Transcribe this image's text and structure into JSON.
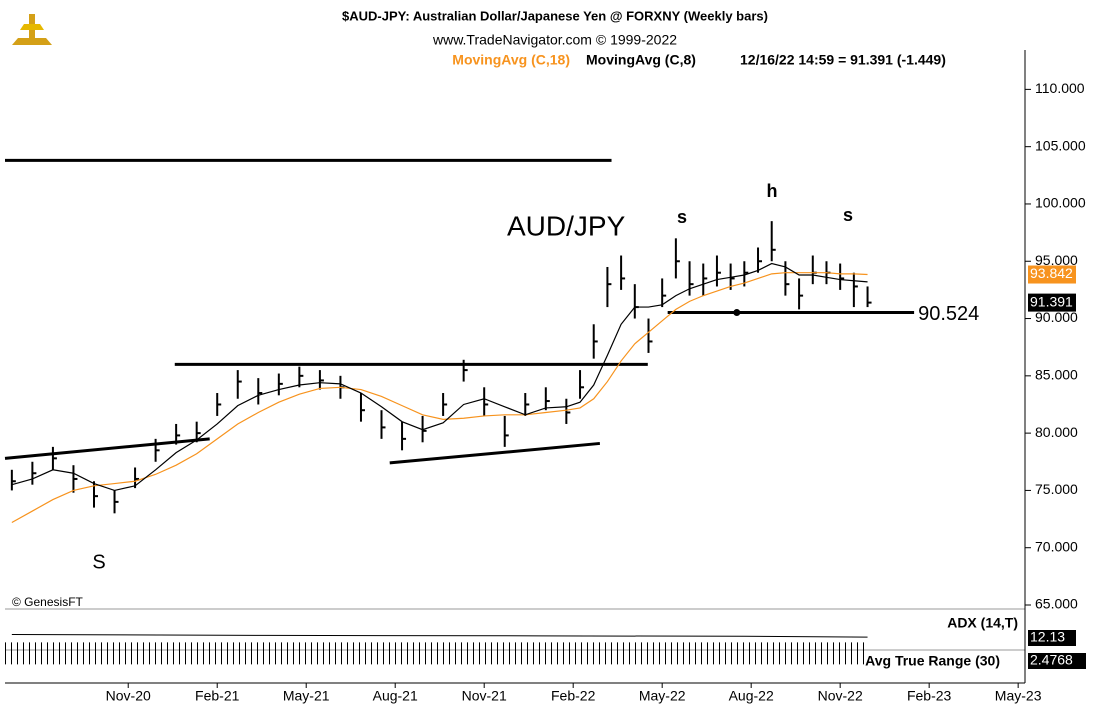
{
  "chart_data": {
    "type": "ohlc",
    "title": "$AUD-JPY:  Australian Dollar/Japanese Yen @ FORXNY  (Weekly bars)",
    "subtitle": "www.TradeNavigator.com © 1999-2022",
    "legend_ma18": "MovingAvg (C,18)",
    "legend_ma8": "MovingAvg (C,8)",
    "legend_quote": "12/16/22 14:59 = 91.391 (-1.449)",
    "annotation_pair": "AUD/JPY",
    "annotation_left_shoulder": "s",
    "annotation_head": "h",
    "annotation_right_shoulder": "s",
    "annotation_big_s": "S",
    "credit": "© GenesisFT",
    "x": [
      -17,
      -14,
      -11,
      -8,
      -5,
      -2,
      1,
      4,
      7,
      10,
      13,
      16,
      19,
      22,
      25,
      28,
      31,
      34,
      37,
      40,
      43,
      46,
      49,
      52,
      55,
      58,
      61,
      64,
      66,
      68,
      70,
      72,
      74,
      76,
      78,
      80,
      82,
      84,
      86,
      88,
      90,
      92,
      94,
      96,
      98,
      100,
      102,
      104,
      106,
      108
    ],
    "high": [
      76.8,
      77.5,
      78.8,
      77.2,
      75.8,
      75.0,
      77.0,
      79.5,
      80.8,
      81.0,
      83.5,
      85.5,
      84.8,
      85.2,
      85.8,
      85.5,
      85.0,
      83.5,
      82.0,
      81.0,
      81.5,
      83.5,
      86.4,
      84.0,
      81.5,
      83.5,
      84.0,
      83.0,
      85.5,
      89.5,
      94.5,
      95.5,
      93.0,
      90.0,
      93.5,
      97.0,
      95.0,
      94.8,
      95.5,
      94.8,
      95.0,
      96.2,
      98.5,
      95.0,
      93.5,
      95.5,
      95.0,
      94.8,
      94.0,
      92.8
    ],
    "low": [
      75.0,
      75.5,
      76.8,
      74.8,
      73.5,
      73.0,
      75.2,
      77.5,
      79.0,
      79.2,
      81.5,
      83.0,
      82.5,
      83.3,
      84.0,
      83.8,
      83.0,
      81.0,
      79.5,
      78.5,
      79.2,
      81.5,
      84.5,
      81.5,
      78.8,
      81.5,
      82.0,
      80.8,
      83.0,
      86.5,
      91.0,
      92.5,
      90.0,
      87.0,
      91.0,
      93.5,
      92.0,
      92.0,
      92.8,
      92.5,
      92.8,
      94.0,
      95.0,
      92.0,
      90.8,
      93.0,
      93.0,
      92.5,
      91.0,
      91.0
    ],
    "close": [
      75.8,
      76.5,
      77.8,
      76.0,
      74.5,
      74.0,
      76.0,
      78.5,
      79.8,
      80.0,
      82.5,
      84.5,
      83.5,
      84.3,
      85.0,
      84.6,
      84.0,
      82.0,
      80.5,
      79.5,
      80.2,
      82.5,
      85.5,
      82.5,
      79.8,
      82.5,
      82.8,
      81.8,
      84.0,
      88.0,
      93.0,
      93.5,
      91.0,
      88.0,
      92.0,
      95.0,
      93.0,
      93.5,
      94.0,
      93.5,
      94.0,
      95.0,
      96.0,
      93.0,
      92.0,
      94.0,
      94.0,
      93.5,
      92.8,
      91.391
    ],
    "series": [
      {
        "name": "MovingAvg (C,18)",
        "color": "#f7931e",
        "values": [
          72.2,
          73.2,
          74.2,
          75.0,
          75.4,
          75.6,
          75.8,
          76.4,
          77.2,
          78.2,
          79.5,
          80.8,
          81.8,
          82.7,
          83.4,
          83.9,
          84.0,
          83.8,
          83.2,
          82.4,
          81.6,
          81.2,
          81.3,
          81.5,
          81.6,
          81.6,
          81.8,
          82.0,
          82.2,
          83.0,
          84.5,
          86.3,
          87.8,
          88.8,
          89.8,
          90.8,
          91.5,
          92.0,
          92.4,
          92.8,
          93.1,
          93.5,
          93.9,
          94.0,
          94.0,
          94.0,
          94.0,
          93.9,
          93.9,
          93.842
        ]
      },
      {
        "name": "MovingAvg (C,8)",
        "color": "#000000",
        "values": [
          75.5,
          76.0,
          76.8,
          76.5,
          75.6,
          75.0,
          75.4,
          76.8,
          78.3,
          79.4,
          80.8,
          82.4,
          83.3,
          83.8,
          84.2,
          84.4,
          84.3,
          83.5,
          82.3,
          81.0,
          80.3,
          80.9,
          82.5,
          83.0,
          82.3,
          81.6,
          82.2,
          82.3,
          82.7,
          84.2,
          86.8,
          89.5,
          91.0,
          91.0,
          91.2,
          92.0,
          92.6,
          93.0,
          93.4,
          93.6,
          93.8,
          94.2,
          94.8,
          94.5,
          93.8,
          93.8,
          93.6,
          93.4,
          93.3,
          93.2
        ]
      }
    ],
    "trendlines": [
      {
        "x": [
          -18,
          70.6
        ],
        "y": [
          103.8,
          103.8
        ]
      },
      {
        "x": [
          6.8,
          75.9
        ],
        "y": [
          86,
          86
        ]
      },
      {
        "x": [
          -18,
          11.9
        ],
        "y": [
          77.8,
          79.5
        ]
      },
      {
        "x": [
          38.2,
          68.9
        ],
        "y": [
          77.4,
          79.1
        ]
      }
    ],
    "neckline": {
      "value": 90.524,
      "x": [
        78.8,
        114.8
      ],
      "dot_x": 88.9
    },
    "tag_ma18": 93.842,
    "tag_close": 91.391,
    "xlim": [
      -18,
      131
    ],
    "ylim": [
      65,
      113
    ],
    "yticks": [
      {
        "value": 65,
        "label": "65.000"
      },
      {
        "value": 70,
        "label": "70.000"
      },
      {
        "value": 75,
        "label": "75.000"
      },
      {
        "value": 80,
        "label": "80.000"
      },
      {
        "value": 85,
        "label": "85.000"
      },
      {
        "value": 90,
        "label": "90.000"
      },
      {
        "value": 95,
        "label": "95.000"
      },
      {
        "value": 100,
        "label": "100.000"
      },
      {
        "value": 105,
        "label": "105.000"
      },
      {
        "value": 110,
        "label": "110.000"
      }
    ],
    "xticks": [
      {
        "value": 0,
        "label": "Nov-20"
      },
      {
        "value": 13,
        "label": "Feb-21"
      },
      {
        "value": 26,
        "label": "May-21"
      },
      {
        "value": 39,
        "label": "Aug-21"
      },
      {
        "value": 52,
        "label": "Nov-21"
      },
      {
        "value": 65,
        "label": "Feb-22"
      },
      {
        "value": 78,
        "label": "May-22"
      },
      {
        "value": 91,
        "label": "Aug-22"
      },
      {
        "value": 104,
        "label": "Nov-22"
      },
      {
        "value": 117,
        "label": "Feb-23"
      },
      {
        "value": 130,
        "label": "May-23"
      }
    ],
    "adx": {
      "label": "ADX (14,T)",
      "last": 12.13,
      "ylim": [
        0,
        40
      ],
      "x": [
        -17,
        20,
        60,
        90,
        108
      ],
      "values": [
        15,
        14,
        13.5,
        13,
        12.13
      ]
    },
    "atr": {
      "label": "Avg True Range (30)",
      "last": 2.4768,
      "ylim": [
        0,
        2.6
      ]
    }
  }
}
